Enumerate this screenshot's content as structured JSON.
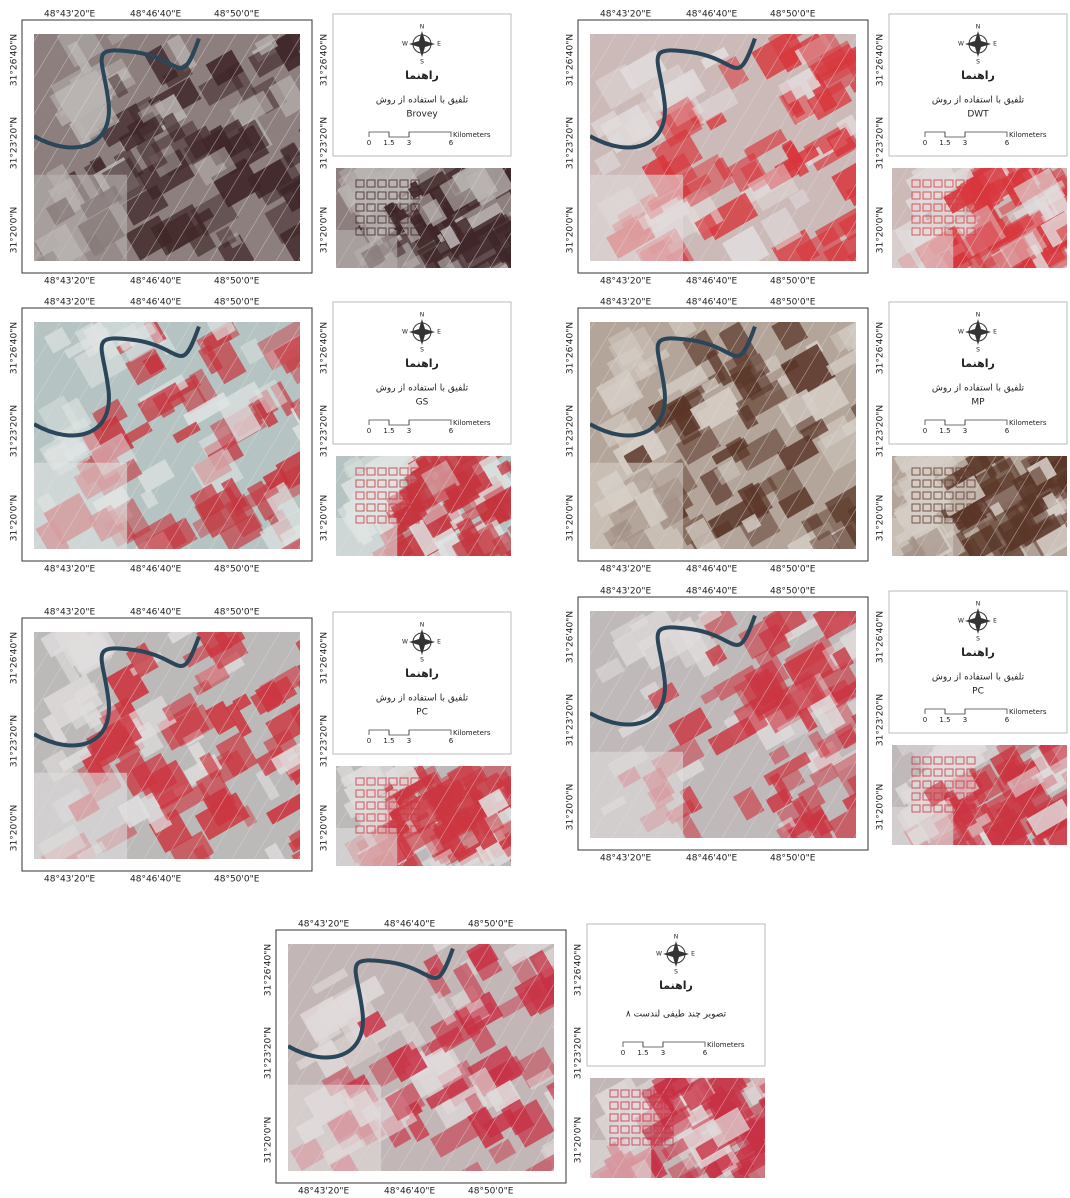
{
  "x_labels": [
    "48°43'20\"E",
    "48°46'40\"E",
    "48°50'0\"E"
  ],
  "y_labels": [
    "31°26'40\"N",
    "31°23'20\"N",
    "31°20'0\"N"
  ],
  "compass": {
    "n": "N",
    "s": "S",
    "w": "W",
    "e": "E"
  },
  "legend_title": "راهنما",
  "method_caption": "تلفیق با استفاده از روش",
  "scale": {
    "ticks": [
      "0",
      "1.5",
      "3",
      "6"
    ],
    "unit": "Kilometers"
  },
  "panels": [
    {
      "method": "Brovey"
    },
    {
      "method": "DWT"
    },
    {
      "method": "GS"
    },
    {
      "method": "MP"
    },
    {
      "method": "PC"
    },
    {
      "method": "PC"
    },
    {
      "caption": "تصویر چند طیفی لندست ۸"
    }
  ]
}
